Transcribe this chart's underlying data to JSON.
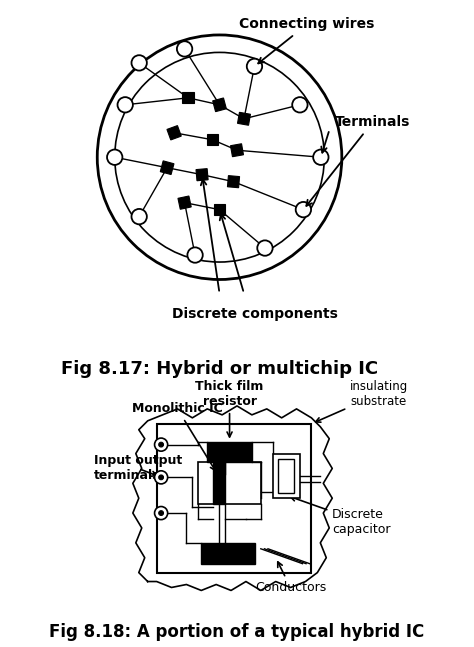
{
  "fig_title1": "Fig 8.17: Hybrid or multichip IC",
  "fig_title2": "Fig 8.18: A portion of a typical hybrid IC",
  "label_connecting_wires": "Connecting wires",
  "label_terminals": "Terminals",
  "label_discrete_components": "Discrete components",
  "label_thick_film": "Thick film\nresistor",
  "label_monolithic": "Monolithic IC",
  "label_insulating": "insulating\nsubstrate",
  "label_input_output": "Input output\nterminals",
  "label_discrete_cap": "Discrete\ncapacitor",
  "label_conductors": "Conductors",
  "bg_color": "#ffffff",
  "line_color": "#000000",
  "fill_color": "#000000"
}
